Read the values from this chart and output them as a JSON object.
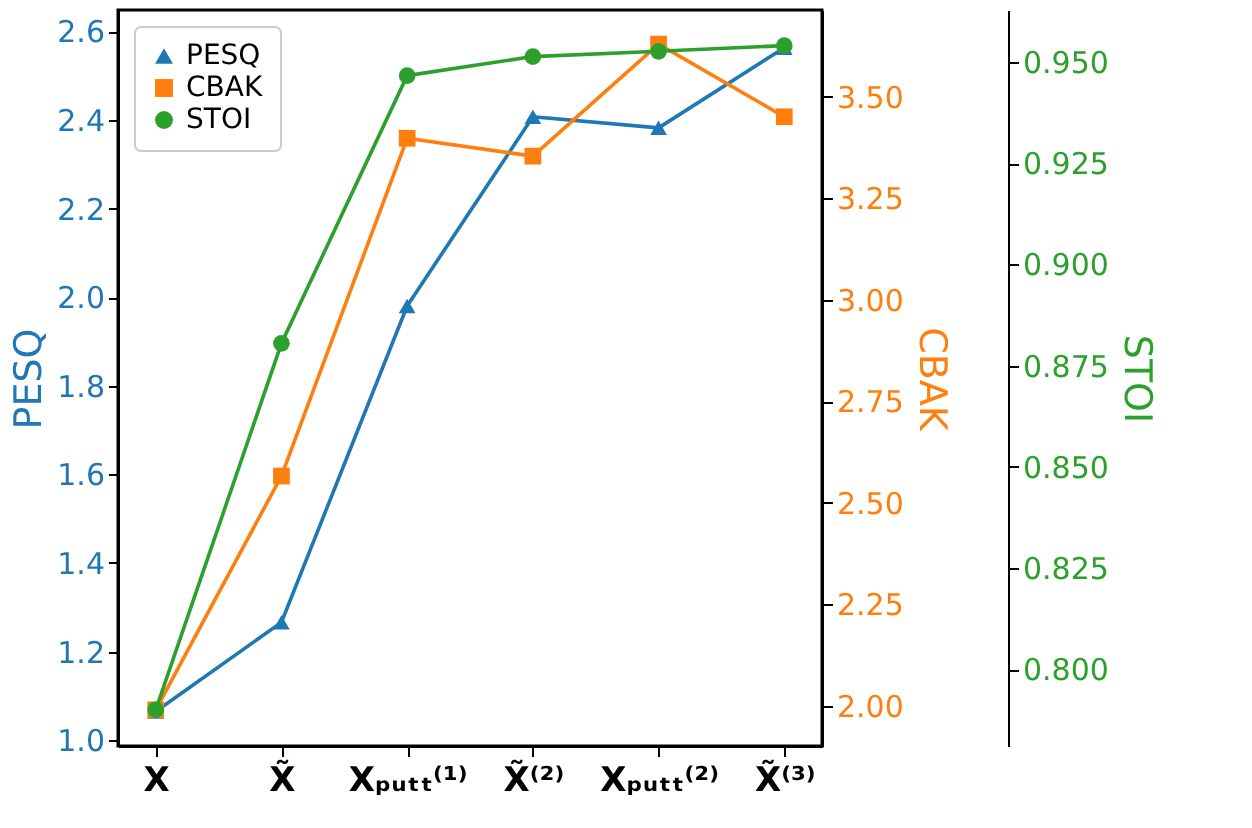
{
  "chart_data": {
    "type": "line",
    "categories": [
      "X",
      "X̃",
      "Xₚᵤₜₜ⁽¹⁾",
      "X̃⁽²⁾",
      "Xₚᵤₜₜ⁽²⁾",
      "X̃⁽³⁾"
    ],
    "ylabel": "PESQ",
    "y2label": "CBAK",
    "y3label": "STOI",
    "ylim": [
      0.987,
      2.648
    ],
    "y2lim": [
      1.901,
      3.714
    ],
    "y3lim": [
      0.7811,
      0.9628
    ],
    "yticks": [
      {
        "value": 1.0,
        "label": "1.0"
      },
      {
        "value": 1.2,
        "label": "1.2"
      },
      {
        "value": 1.4,
        "label": "1.4"
      },
      {
        "value": 1.6,
        "label": "1.6"
      },
      {
        "value": 1.8,
        "label": "1.8"
      },
      {
        "value": 2.0,
        "label": "2.0"
      },
      {
        "value": 2.2,
        "label": "2.2"
      },
      {
        "value": 2.4,
        "label": "2.4"
      },
      {
        "value": 2.6,
        "label": "2.6"
      }
    ],
    "y2ticks": [
      {
        "value": 2.0,
        "label": "2.00"
      },
      {
        "value": 2.25,
        "label": "2.25"
      },
      {
        "value": 2.5,
        "label": "2.50"
      },
      {
        "value": 2.75,
        "label": "2.75"
      },
      {
        "value": 3.0,
        "label": "3.00"
      },
      {
        "value": 3.25,
        "label": "3.25"
      },
      {
        "value": 3.5,
        "label": "3.50"
      }
    ],
    "y3ticks": [
      {
        "value": 0.8,
        "label": "0.800"
      },
      {
        "value": 0.825,
        "label": "0.825"
      },
      {
        "value": 0.85,
        "label": "0.850"
      },
      {
        "value": 0.875,
        "label": "0.875"
      },
      {
        "value": 0.9,
        "label": "0.900"
      },
      {
        "value": 0.925,
        "label": "0.925"
      },
      {
        "value": 0.95,
        "label": "0.950"
      }
    ],
    "legend": "top left",
    "grid": false,
    "line_style": "solid",
    "series": [
      {
        "name": "PESQ",
        "color": "#1f77b4",
        "marker": "triangle",
        "axis": "y",
        "values": [
          1.065,
          1.266,
          1.98,
          2.407,
          2.382,
          2.563
        ]
      },
      {
        "name": "CBAK",
        "color": "#ff7f0e",
        "marker": "square",
        "axis": "y2",
        "values": [
          1.99,
          2.566,
          3.398,
          3.354,
          3.63,
          3.451
        ]
      },
      {
        "name": "STOI",
        "color": "#2ca02c",
        "marker": "circle",
        "axis": "y3",
        "values": [
          0.79,
          0.8805,
          0.9466,
          0.9513,
          0.9526,
          0.954
        ]
      }
    ]
  }
}
